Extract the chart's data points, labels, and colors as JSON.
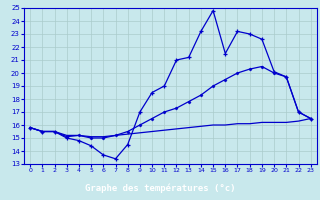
{
  "title": "Graphe des températures (°c)",
  "bg_color": "#c8e8ec",
  "plot_bg": "#c8e8ec",
  "xlabel_bg": "#0000aa",
  "line_color": "#0000cc",
  "grid_color": "#aacccc",
  "spine_color": "#0000cc",
  "xmin": -0.5,
  "xmax": 23.5,
  "ymin": 13,
  "ymax": 25,
  "xticks": [
    0,
    1,
    2,
    3,
    4,
    5,
    6,
    7,
    8,
    9,
    10,
    11,
    12,
    13,
    14,
    15,
    16,
    17,
    18,
    19,
    20,
    21,
    22,
    23
  ],
  "yticks": [
    13,
    14,
    15,
    16,
    17,
    18,
    19,
    20,
    21,
    22,
    23,
    24,
    25
  ],
  "line1_x": [
    0,
    1,
    2,
    3,
    4,
    5,
    6,
    7,
    8,
    9,
    10,
    11,
    12,
    13,
    14,
    15,
    16,
    17,
    18,
    19,
    20,
    21,
    22,
    23
  ],
  "line1_y": [
    15.8,
    15.5,
    15.5,
    15.0,
    14.8,
    14.4,
    13.7,
    13.4,
    14.5,
    17.0,
    18.5,
    19.0,
    21.0,
    21.2,
    23.2,
    24.8,
    21.5,
    23.2,
    23.0,
    22.6,
    20.1,
    19.7,
    17.0,
    16.5
  ],
  "line2_x": [
    0,
    1,
    2,
    3,
    4,
    5,
    6,
    7,
    8,
    9,
    10,
    11,
    12,
    13,
    14,
    15,
    16,
    17,
    18,
    19,
    20,
    21,
    22,
    23
  ],
  "line2_y": [
    15.8,
    15.5,
    15.5,
    15.1,
    15.2,
    15.0,
    15.0,
    15.2,
    15.5,
    16.0,
    16.5,
    17.0,
    17.3,
    17.8,
    18.3,
    19.0,
    19.5,
    20.0,
    20.3,
    20.5,
    20.0,
    19.7,
    17.0,
    16.5
  ],
  "line3_x": [
    0,
    1,
    2,
    3,
    4,
    5,
    6,
    7,
    8,
    9,
    10,
    11,
    12,
    13,
    14,
    15,
    16,
    17,
    18,
    19,
    20,
    21,
    22,
    23
  ],
  "line3_y": [
    15.8,
    15.5,
    15.5,
    15.2,
    15.2,
    15.1,
    15.1,
    15.2,
    15.3,
    15.4,
    15.5,
    15.6,
    15.7,
    15.8,
    15.9,
    16.0,
    16.0,
    16.1,
    16.1,
    16.2,
    16.2,
    16.2,
    16.3,
    16.5
  ],
  "xlabel_fontsize": 6.5,
  "tick_fontsize": 4.5,
  "ytick_fontsize": 5.0,
  "linewidth": 0.9
}
